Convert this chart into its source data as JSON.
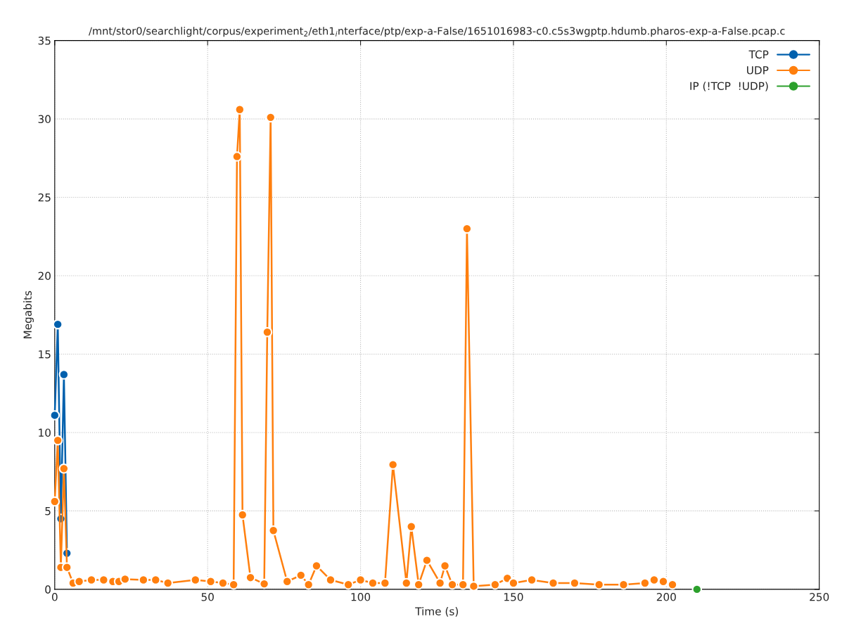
{
  "chart_data": {
    "type": "line",
    "title": "/mnt/stor0/searchlight/corpus/experiment$_{2}$/eth1$_{i}$nterface/ptp/exp-a-False/1651016983-c0.c5s3wgptp.hdumb.pharos-exp-a-False.pcap.c",
    "xlabel": "Time (s)",
    "ylabel": "Megabits",
    "xlim": [
      0,
      250
    ],
    "xticks": [
      0,
      50,
      100,
      150,
      200,
      250
    ],
    "ylim": [
      0,
      35
    ],
    "yticks": [
      0,
      5,
      10,
      15,
      20,
      25,
      30,
      35
    ],
    "grid": true,
    "legend": "top right",
    "marker": "circle",
    "line_style": "solid",
    "series": [
      {
        "name": "TCP",
        "color": "#0060ad",
        "x": [
          0,
          1,
          2,
          3,
          4
        ],
        "values": [
          11.1,
          16.9,
          4.5,
          13.7,
          2.3
        ]
      },
      {
        "name": "UDP",
        "color": "#ff7f0e",
        "x": [
          0,
          1,
          2,
          3,
          4,
          6,
          8,
          12,
          16,
          19,
          21,
          23,
          29,
          33,
          37,
          46,
          51,
          55,
          58.5,
          59.6,
          60.5,
          61.4,
          64,
          68.5,
          69.5,
          70.6,
          71.5,
          76,
          80.5,
          83,
          85.6,
          90.2,
          96,
          100,
          104,
          108,
          110.6,
          115,
          116.6,
          119,
          121.7,
          126,
          127.6,
          130,
          133.5,
          134.8,
          137,
          144,
          148,
          150,
          156,
          163,
          170,
          178,
          186,
          193,
          196,
          199,
          202
        ],
        "values": [
          5.6,
          9.5,
          1.4,
          7.7,
          1.4,
          0.4,
          0.5,
          0.6,
          0.6,
          0.5,
          0.5,
          0.65,
          0.6,
          0.6,
          0.4,
          0.6,
          0.5,
          0.4,
          0.3,
          27.6,
          30.6,
          4.75,
          0.75,
          0.35,
          16.4,
          30.1,
          3.75,
          0.5,
          0.9,
          0.3,
          1.5,
          0.6,
          0.3,
          0.6,
          0.4,
          0.4,
          7.95,
          0.4,
          4.0,
          0.3,
          1.85,
          0.4,
          1.5,
          0.3,
          0.3,
          23.0,
          0.2,
          0.3,
          0.7,
          0.4,
          0.6,
          0.4,
          0.4,
          0.3,
          0.3,
          0.4,
          0.6,
          0.5,
          0.3
        ]
      },
      {
        "name": "IP (!TCP  !UDP)",
        "color": "#2ca02c",
        "x": [
          210
        ],
        "values": [
          0
        ]
      }
    ]
  }
}
